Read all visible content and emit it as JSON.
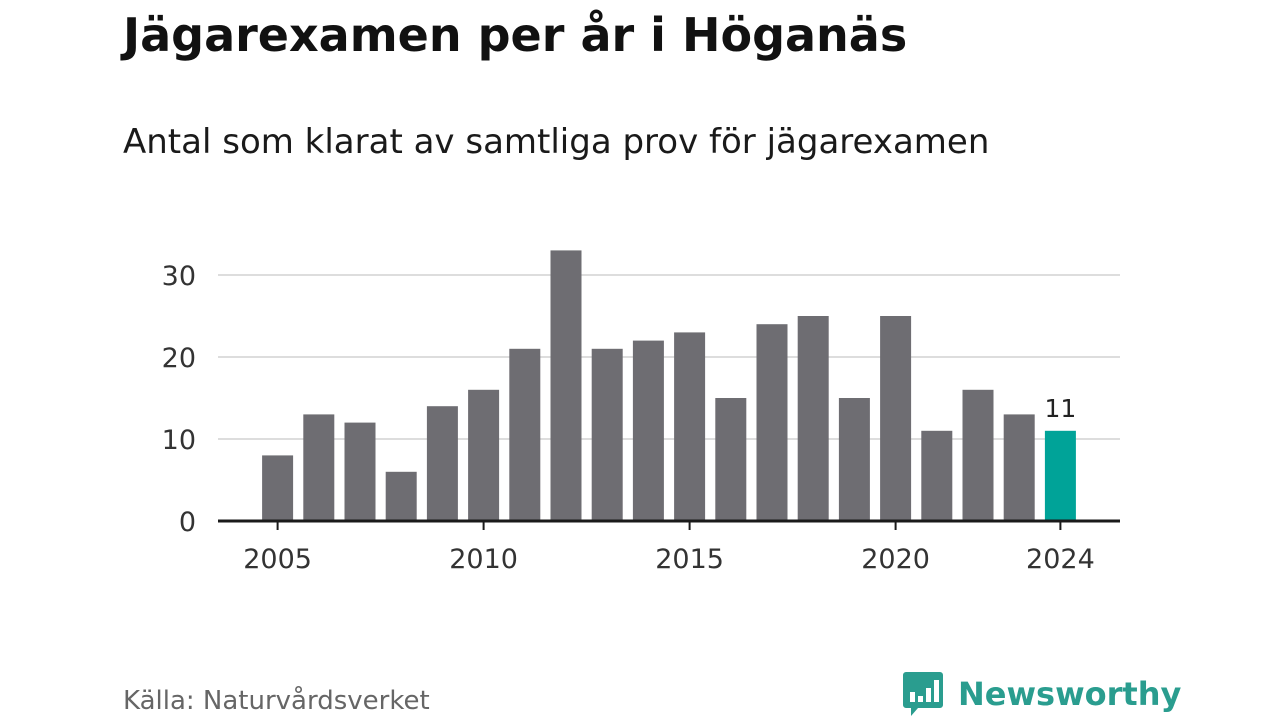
{
  "title": "Jägarexamen per år i Höganäs",
  "subtitle": "Antal som klarat av samtliga prov för jägarexamen",
  "source": "Källa: Naturvårdsverket",
  "brand": {
    "name": "Newsworthy",
    "icon": "newsworthy-logo-icon",
    "color": "#2a9d8f"
  },
  "colors": {
    "bar": "#6e6d72",
    "highlight": "#00a398",
    "grid": "#dddddd",
    "axis": "#1a1a1a"
  },
  "chart_data": {
    "type": "bar",
    "categories": [
      "2005",
      "2006",
      "2007",
      "2008",
      "2009",
      "2010",
      "2011",
      "2012",
      "2013",
      "2014",
      "2015",
      "2016",
      "2017",
      "2018",
      "2019",
      "2020",
      "2021",
      "2022",
      "2023",
      "2024"
    ],
    "values": [
      8,
      13,
      12,
      6,
      14,
      16,
      21,
      33,
      21,
      22,
      23,
      15,
      24,
      25,
      15,
      25,
      11,
      16,
      13,
      11
    ],
    "highlight_index": 19,
    "highlight_label": "11",
    "x_tick_labels": [
      "2005",
      "2010",
      "2015",
      "2020",
      "2024"
    ],
    "y_ticks": [
      0,
      10,
      20,
      30
    ],
    "y_tick_labels": [
      "0",
      "10",
      "20",
      "30"
    ],
    "ylim": [
      0,
      33
    ],
    "grid": true,
    "xlabel": "",
    "ylabel": ""
  }
}
